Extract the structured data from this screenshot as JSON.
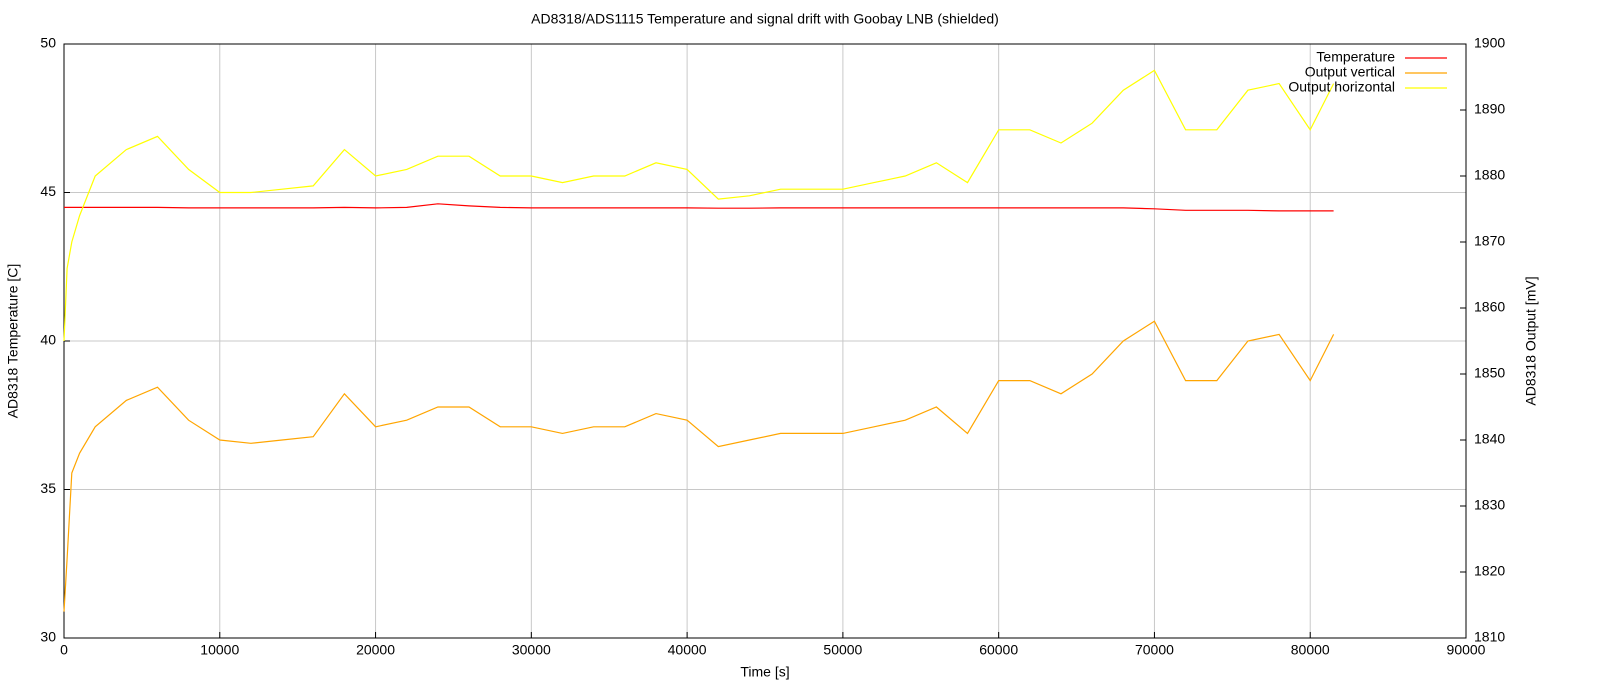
{
  "chart_data": {
    "type": "line",
    "title": "AD8318/ADS1115 Temperature and signal drift with Goobay LNB (shielded)",
    "xlabel": "Time [s]",
    "ylabel": "AD8318 Temperature [C]",
    "y2label": "AD8318 Output [mV]",
    "x": [
      0,
      200,
      500,
      1000,
      2000,
      4000,
      6000,
      8000,
      10000,
      12000,
      14000,
      16000,
      18000,
      20000,
      22000,
      24000,
      26000,
      28000,
      30000,
      32000,
      34000,
      36000,
      38000,
      40000,
      42000,
      44000,
      46000,
      48000,
      50000,
      52000,
      54000,
      56000,
      58000,
      60000,
      62000,
      64000,
      66000,
      68000,
      70000,
      72000,
      74000,
      76000,
      78000,
      80000,
      81500
    ],
    "series": [
      {
        "name": "Temperature",
        "color": "#ff0000",
        "values": [
          44.5,
          44.5,
          44.5,
          44.5,
          44.5,
          44.5,
          44.5,
          44.48,
          44.48,
          44.48,
          44.48,
          44.48,
          44.5,
          44.48,
          44.5,
          44.62,
          44.55,
          44.5,
          44.48,
          44.48,
          44.48,
          44.48,
          44.48,
          44.48,
          44.47,
          44.47,
          44.48,
          44.48,
          44.48,
          44.48,
          44.48,
          44.48,
          44.48,
          44.48,
          44.48,
          44.48,
          44.48,
          44.48,
          44.45,
          44.4,
          44.4,
          44.4,
          44.38,
          44.38,
          44.38
        ]
      },
      {
        "name": "Output vertical",
        "color": "#ffa500",
        "axis": "y2",
        "values": [
          1814,
          1822,
          1835,
          1838,
          1842,
          1846,
          1848,
          1843,
          1840,
          1839.5,
          1840,
          1840.5,
          1847,
          1842,
          1843,
          1845,
          1845,
          1842,
          1842,
          1841,
          1842,
          1842,
          1844,
          1843,
          1839,
          1840,
          1841,
          1841,
          1841,
          1842,
          1843,
          1845,
          1841,
          1849,
          1849,
          1847,
          1850,
          1855,
          1858,
          1849,
          1849,
          1855,
          1856,
          1849,
          1856
        ]
      },
      {
        "name": "Output horizontal",
        "color": "#ffff00",
        "axis": "y2",
        "values": [
          1855,
          1866,
          1870,
          1874,
          1880,
          1884,
          1886,
          1881,
          1877.5,
          1877.5,
          1878,
          1878.5,
          1884,
          1880,
          1881,
          1883,
          1883,
          1880,
          1880,
          1879,
          1880,
          1880,
          1882,
          1881,
          1876.5,
          1877,
          1878,
          1878,
          1878,
          1879,
          1880,
          1882,
          1879,
          1887,
          1887,
          1885,
          1888,
          1893,
          1896,
          1887,
          1887,
          1893,
          1894,
          1887,
          1894
        ]
      }
    ],
    "xlim": [
      0,
      90000
    ],
    "xticks": [
      0,
      10000,
      20000,
      30000,
      40000,
      50000,
      60000,
      70000,
      80000,
      90000
    ],
    "ylim": [
      30,
      50
    ],
    "yticks": [
      30,
      35,
      40,
      45,
      50
    ],
    "y2lim": [
      1810,
      1900
    ],
    "y2ticks": [
      1810,
      1820,
      1830,
      1840,
      1850,
      1860,
      1870,
      1880,
      1890,
      1900
    ],
    "grid": true,
    "legend": "top-right"
  }
}
